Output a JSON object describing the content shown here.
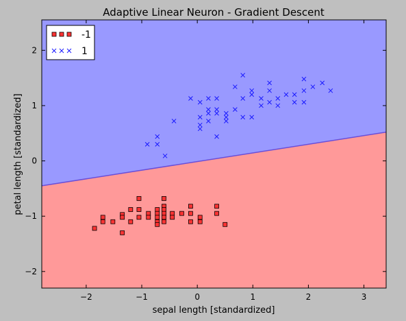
{
  "chart_data": {
    "type": "scatter",
    "title": "Adaptive Linear Neuron - Gradient Descent",
    "xlabel": "sepal length [standardized]",
    "ylabel": "petal length [standardized]",
    "xlim": [
      -2.8,
      3.4
    ],
    "ylim": [
      -2.3,
      2.55
    ],
    "xticks": [
      {
        "value": -2,
        "label": "−2"
      },
      {
        "value": -1,
        "label": "−1"
      },
      {
        "value": 0,
        "label": "0"
      },
      {
        "value": 1,
        "label": "1"
      },
      {
        "value": 2,
        "label": "2"
      },
      {
        "value": 3,
        "label": "3"
      }
    ],
    "yticks": [
      {
        "value": -2,
        "label": "−2"
      },
      {
        "value": -1,
        "label": "−1"
      },
      {
        "value": 0,
        "label": "0"
      },
      {
        "value": 1,
        "label": "1"
      },
      {
        "value": 2,
        "label": "2"
      }
    ],
    "grid": false,
    "legend": {
      "placement": "top-left"
    },
    "decision_boundary": {
      "points": [
        [
          -2.8,
          -0.45
        ],
        [
          3.4,
          0.52
        ]
      ],
      "upper_region_color": "#9999ff",
      "lower_region_color": "#ff9999",
      "line_color": "#6a4fd8"
    },
    "series": [
      {
        "name": "-1",
        "marker": "square",
        "color": "#ff3333",
        "edge_color": "#000000",
        "points": [
          [
            -1.85,
            -1.22
          ],
          [
            -1.7,
            -1.02
          ],
          [
            -1.7,
            -1.1
          ],
          [
            -1.52,
            -1.1
          ],
          [
            -1.35,
            -0.97
          ],
          [
            -1.35,
            -1.02
          ],
          [
            -1.35,
            -1.3
          ],
          [
            -1.2,
            -0.88
          ],
          [
            -1.2,
            -1.1
          ],
          [
            -1.05,
            -0.68
          ],
          [
            -1.05,
            -0.88
          ],
          [
            -1.05,
            -1.02
          ],
          [
            -0.88,
            -0.95
          ],
          [
            -0.88,
            -1.02
          ],
          [
            -0.72,
            -0.88
          ],
          [
            -0.72,
            -0.95
          ],
          [
            -0.72,
            -1.02
          ],
          [
            -0.72,
            -1.1
          ],
          [
            -0.72,
            -1.15
          ],
          [
            -0.6,
            -0.68
          ],
          [
            -0.6,
            -0.82
          ],
          [
            -0.6,
            -0.88
          ],
          [
            -0.6,
            -0.95
          ],
          [
            -0.6,
            -1.02
          ],
          [
            -0.6,
            -1.1
          ],
          [
            -0.45,
            -0.95
          ],
          [
            -0.45,
            -1.02
          ],
          [
            -0.28,
            -0.95
          ],
          [
            -0.12,
            -0.82
          ],
          [
            -0.12,
            -0.95
          ],
          [
            -0.12,
            -1.1
          ],
          [
            0.05,
            -1.02
          ],
          [
            0.05,
            -1.1
          ],
          [
            0.35,
            -0.82
          ],
          [
            0.35,
            -0.95
          ],
          [
            0.5,
            -1.15
          ]
        ]
      },
      {
        "name": "1",
        "marker": "x",
        "color": "#1a1aff",
        "points": [
          [
            -0.9,
            0.3
          ],
          [
            -0.72,
            0.3
          ],
          [
            -0.72,
            0.44
          ],
          [
            -0.58,
            0.09
          ],
          [
            -0.42,
            0.72
          ],
          [
            -0.12,
            1.13
          ],
          [
            0.05,
            0.58
          ],
          [
            0.05,
            0.65
          ],
          [
            0.05,
            0.79
          ],
          [
            0.05,
            1.06
          ],
          [
            0.2,
            0.72
          ],
          [
            0.2,
            0.86
          ],
          [
            0.2,
            0.93
          ],
          [
            0.2,
            1.13
          ],
          [
            0.35,
            0.44
          ],
          [
            0.35,
            0.86
          ],
          [
            0.35,
            0.93
          ],
          [
            0.35,
            1.13
          ],
          [
            0.52,
            0.72
          ],
          [
            0.52,
            0.79
          ],
          [
            0.52,
            0.86
          ],
          [
            0.68,
            0.93
          ],
          [
            0.68,
            1.34
          ],
          [
            0.82,
            0.79
          ],
          [
            0.82,
            1.13
          ],
          [
            0.82,
            1.55
          ],
          [
            0.98,
            0.79
          ],
          [
            0.98,
            1.2
          ],
          [
            0.98,
            1.27
          ],
          [
            1.15,
            1.0
          ],
          [
            1.15,
            1.13
          ],
          [
            1.3,
            1.06
          ],
          [
            1.3,
            1.27
          ],
          [
            1.3,
            1.41
          ],
          [
            1.45,
            1.0
          ],
          [
            1.45,
            1.13
          ],
          [
            1.6,
            1.2
          ],
          [
            1.75,
            1.06
          ],
          [
            1.75,
            1.2
          ],
          [
            1.92,
            1.06
          ],
          [
            1.92,
            1.27
          ],
          [
            1.92,
            1.48
          ],
          [
            2.08,
            1.34
          ],
          [
            2.25,
            1.41
          ],
          [
            2.4,
            1.27
          ]
        ]
      }
    ]
  }
}
